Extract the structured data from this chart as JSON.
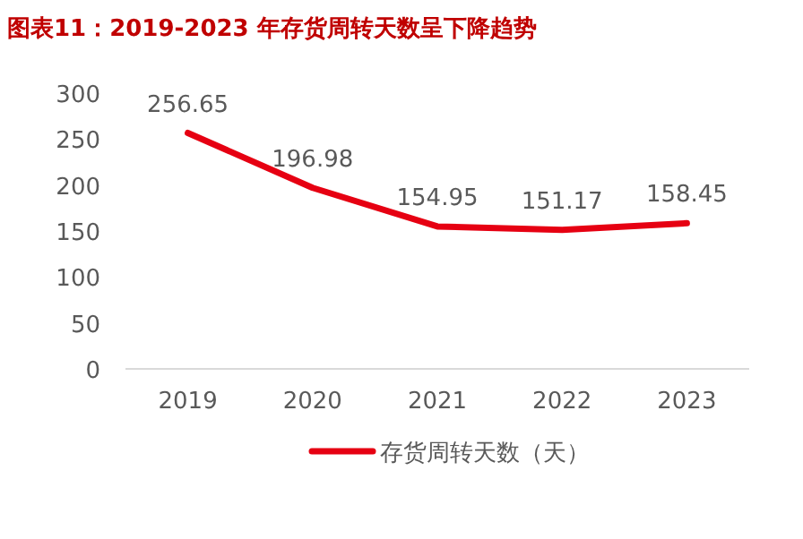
{
  "chart_data": {
    "type": "line",
    "title": "图表11：2019-2023 年存货周转天数呈下降趋势",
    "categories": [
      "2019",
      "2020",
      "2021",
      "2022",
      "2023"
    ],
    "series": [
      {
        "name": "存货周转天数（天）",
        "color": "#e60012",
        "values": [
          256.65,
          196.98,
          154.95,
          151.17,
          158.45
        ]
      }
    ],
    "ylim": [
      0,
      300
    ],
    "yticks": [
      0,
      50,
      100,
      150,
      200,
      250,
      300
    ],
    "data_labels": true,
    "legend": "bottom",
    "grid": false
  }
}
